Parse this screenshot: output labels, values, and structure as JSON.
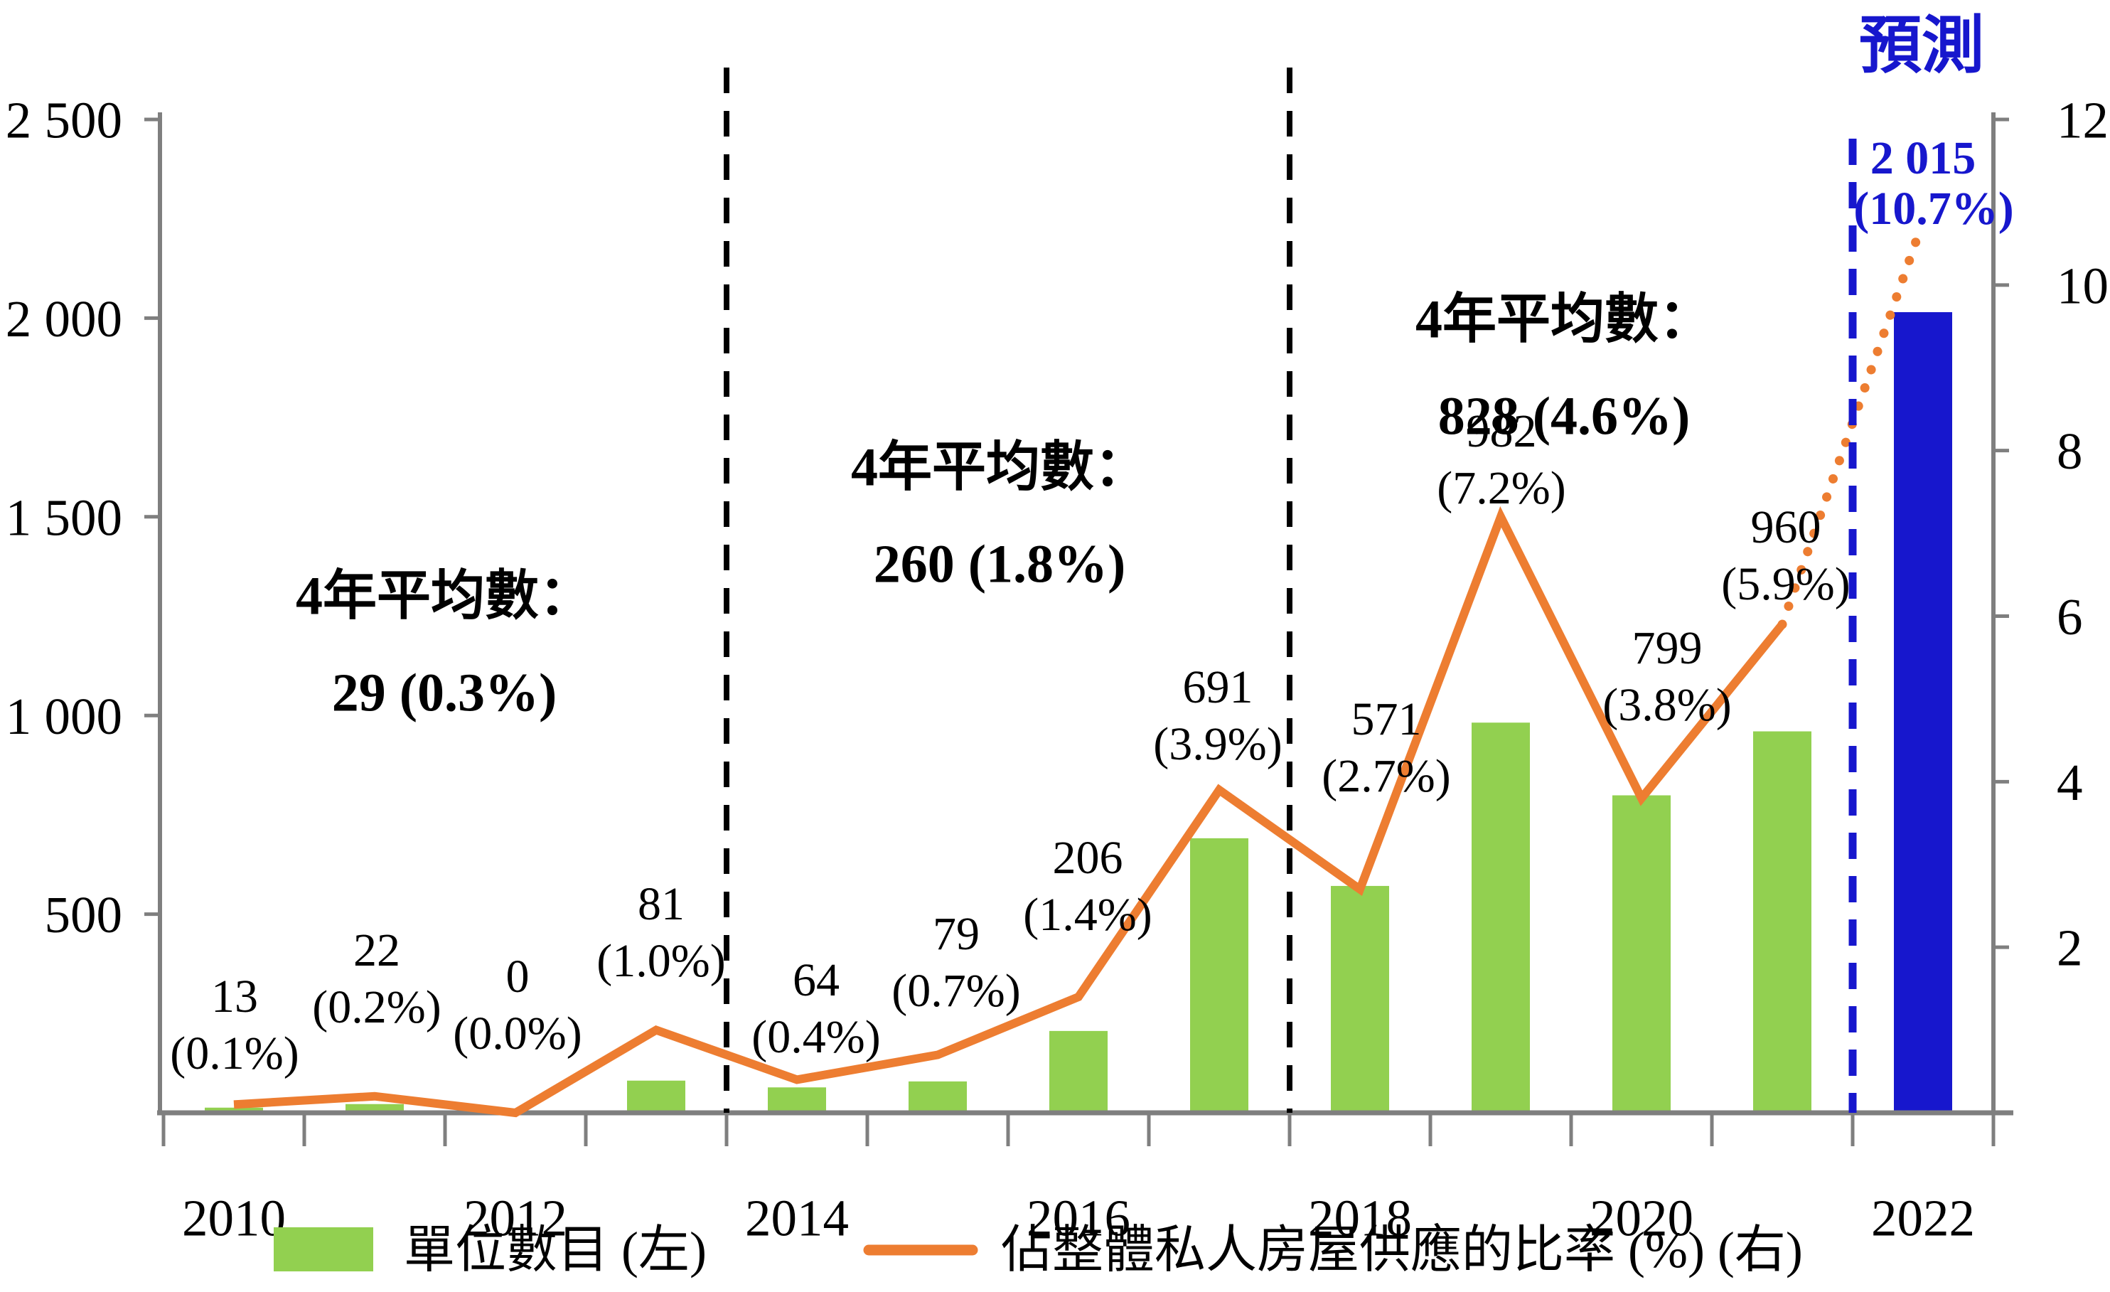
{
  "chart_data": {
    "type": "combo-bar-line",
    "title": "",
    "forecast_label": "預測",
    "categories": [
      "2010",
      "2011",
      "2012",
      "2013",
      "2014",
      "2015",
      "2016",
      "2017",
      "2018",
      "2019",
      "2020",
      "2021",
      "2022"
    ],
    "x_tick_labels": [
      "2010",
      "2012",
      "2014",
      "2016",
      "2018",
      "2020",
      "2022"
    ],
    "left_axis": {
      "min": 0,
      "max": 2500,
      "tick_values": [
        2500,
        2000,
        1500,
        1000,
        500
      ],
      "tick_labels": [
        "2 500",
        "2 000",
        "1 500",
        "1 000",
        "500"
      ]
    },
    "right_axis": {
      "min": 0,
      "max": 12,
      "tick_values": [
        12,
        10,
        8,
        6,
        4,
        2
      ],
      "tick_labels": [
        "12",
        "10",
        "8",
        "6",
        "4",
        "2"
      ]
    },
    "series": [
      {
        "name": "單位數目 (左)",
        "type": "bar",
        "axis": "left",
        "values": [
          13,
          22,
          0,
          81,
          64,
          79,
          206,
          691,
          571,
          982,
          799,
          960,
          2015
        ],
        "forecast_index": 12
      },
      {
        "name": "佔整體私人房屋供應的比率 (%) (右)",
        "type": "line",
        "axis": "right",
        "values": [
          0.1,
          0.2,
          0.0,
          1.0,
          0.4,
          0.7,
          1.4,
          3.9,
          2.7,
          7.2,
          3.8,
          5.9,
          10.7
        ],
        "forecast_from_index": 11
      }
    ],
    "point_labels": [
      {
        "value": "13",
        "pct": "(0.1%)"
      },
      {
        "value": "22",
        "pct": "(0.2%)"
      },
      {
        "value": "0",
        "pct": "(0.0%)"
      },
      {
        "value": "81",
        "pct": "(1.0%)"
      },
      {
        "value": "64",
        "pct": "(0.4%)"
      },
      {
        "value": "79",
        "pct": "(0.7%)"
      },
      {
        "value": "206",
        "pct": "(1.4%)"
      },
      {
        "value": "691",
        "pct": "(3.9%)"
      },
      {
        "value": "571",
        "pct": "(2.7%)"
      },
      {
        "value": "982",
        "pct": "(7.2%)"
      },
      {
        "value": "799",
        "pct": "(3.8%)"
      },
      {
        "value": "960",
        "pct": "(5.9%)"
      },
      {
        "value": "2 015",
        "pct": "(10.7%)"
      }
    ],
    "annotations": [
      {
        "line1": "4年平均數：",
        "line2": "29 (0.3%)"
      },
      {
        "line1": "4年平均數：",
        "line2": "260 (1.8%)"
      },
      {
        "line1": "4年平均數：",
        "line2": "828 (4.6%)"
      }
    ],
    "legend": [
      {
        "label": "單位數目 (左)",
        "marker": "bar"
      },
      {
        "label": "佔整體私人房屋供應的比率 (%) (右)",
        "marker": "line"
      }
    ],
    "colors": {
      "bar": "#92D050",
      "forecast_bar": "#1717CD",
      "line": "#ED7D31",
      "forecast_blue": "#1717CD",
      "separator": "#000000",
      "axis": "#7F7F7F",
      "text": "#000000"
    }
  }
}
